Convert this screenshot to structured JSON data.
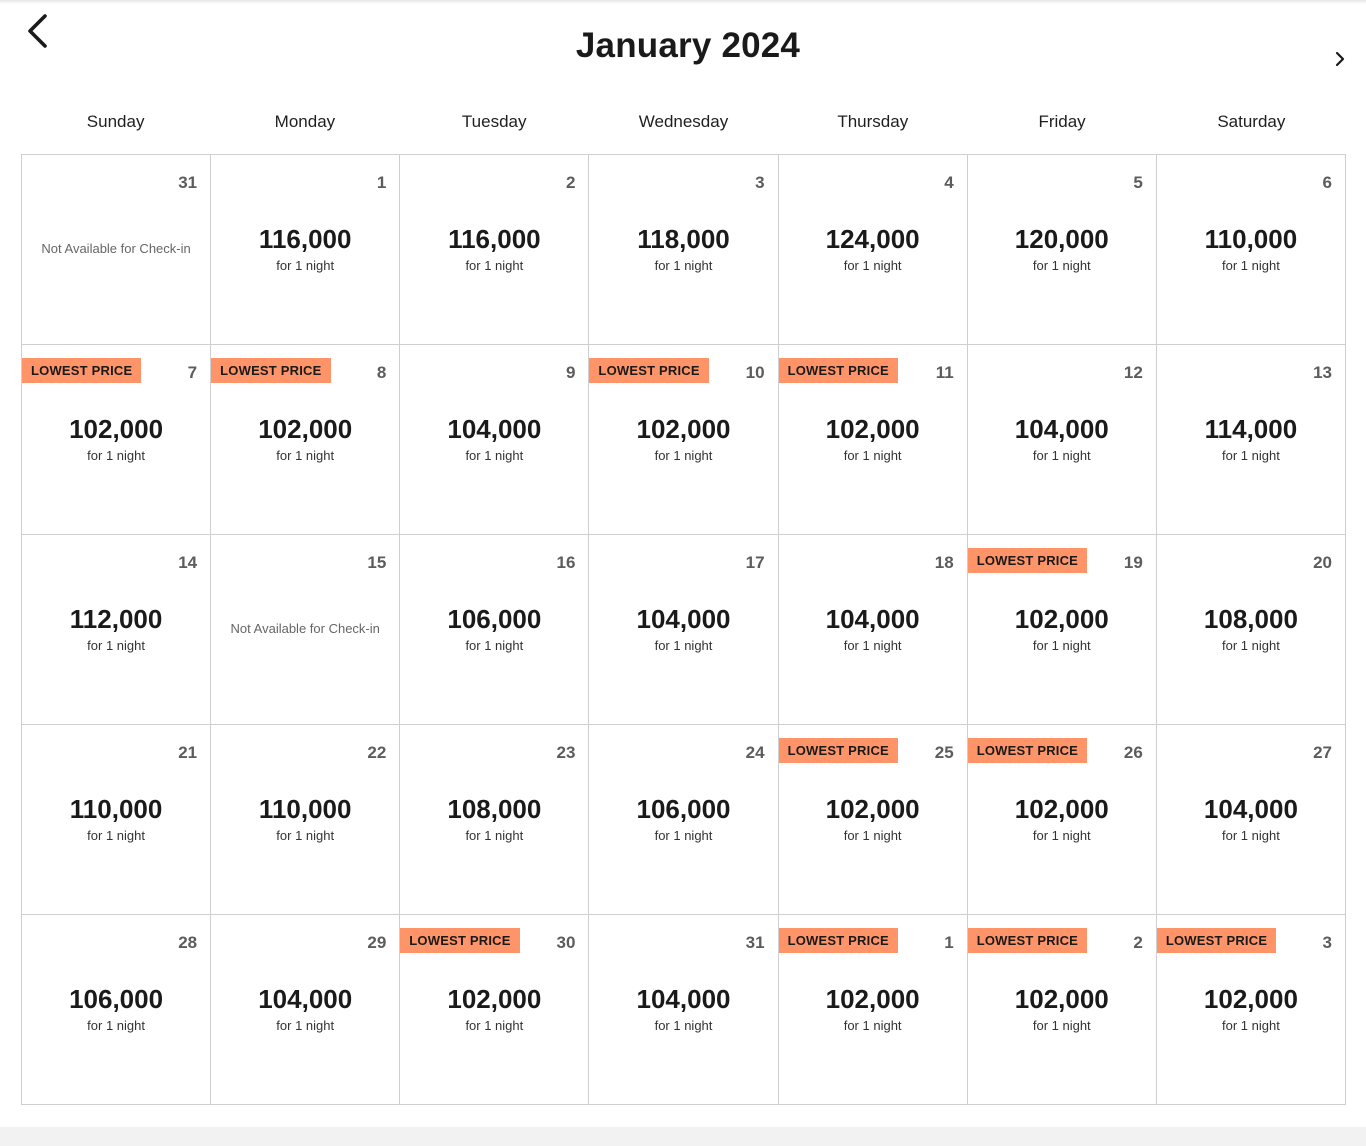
{
  "header": {
    "title": "January 2024",
    "prev_icon": "chevron-left-icon",
    "next_icon": "chevron-right-icon"
  },
  "weekdays": [
    "Sunday",
    "Monday",
    "Tuesday",
    "Wednesday",
    "Thursday",
    "Friday",
    "Saturday"
  ],
  "badge_color": "#ff9468",
  "days": [
    {
      "day": "31",
      "unavailable": "Not Available for Check-in"
    },
    {
      "day": "1",
      "price": "116,000",
      "nights": "for 1 night"
    },
    {
      "day": "2",
      "price": "116,000",
      "nights": "for 1 night"
    },
    {
      "day": "3",
      "price": "118,000",
      "nights": "for 1 night"
    },
    {
      "day": "4",
      "price": "124,000",
      "nights": "for 1 night"
    },
    {
      "day": "5",
      "price": "120,000",
      "nights": "for 1 night"
    },
    {
      "day": "6",
      "price": "110,000",
      "nights": "for 1 night"
    },
    {
      "day": "7",
      "price": "102,000",
      "nights": "for 1 night",
      "badge": "LOWEST PRICE"
    },
    {
      "day": "8",
      "price": "102,000",
      "nights": "for 1 night",
      "badge": "LOWEST PRICE"
    },
    {
      "day": "9",
      "price": "104,000",
      "nights": "for 1 night"
    },
    {
      "day": "10",
      "price": "102,000",
      "nights": "for 1 night",
      "badge": "LOWEST PRICE"
    },
    {
      "day": "11",
      "price": "102,000",
      "nights": "for 1 night",
      "badge": "LOWEST PRICE"
    },
    {
      "day": "12",
      "price": "104,000",
      "nights": "for 1 night"
    },
    {
      "day": "13",
      "price": "114,000",
      "nights": "for 1 night"
    },
    {
      "day": "14",
      "price": "112,000",
      "nights": "for 1 night"
    },
    {
      "day": "15",
      "unavailable": "Not Available for Check-in"
    },
    {
      "day": "16",
      "price": "106,000",
      "nights": "for 1 night"
    },
    {
      "day": "17",
      "price": "104,000",
      "nights": "for 1 night"
    },
    {
      "day": "18",
      "price": "104,000",
      "nights": "for 1 night"
    },
    {
      "day": "19",
      "price": "102,000",
      "nights": "for 1 night",
      "badge": "LOWEST PRICE"
    },
    {
      "day": "20",
      "price": "108,000",
      "nights": "for 1 night"
    },
    {
      "day": "21",
      "price": "110,000",
      "nights": "for 1 night"
    },
    {
      "day": "22",
      "price": "110,000",
      "nights": "for 1 night"
    },
    {
      "day": "23",
      "price": "108,000",
      "nights": "for 1 night"
    },
    {
      "day": "24",
      "price": "106,000",
      "nights": "for 1 night"
    },
    {
      "day": "25",
      "price": "102,000",
      "nights": "for 1 night",
      "badge": "LOWEST PRICE"
    },
    {
      "day": "26",
      "price": "102,000",
      "nights": "for 1 night",
      "badge": "LOWEST PRICE"
    },
    {
      "day": "27",
      "price": "104,000",
      "nights": "for 1 night"
    },
    {
      "day": "28",
      "price": "106,000",
      "nights": "for 1 night"
    },
    {
      "day": "29",
      "price": "104,000",
      "nights": "for 1 night"
    },
    {
      "day": "30",
      "price": "102,000",
      "nights": "for 1 night",
      "badge": "LOWEST PRICE"
    },
    {
      "day": "31",
      "price": "104,000",
      "nights": "for 1 night"
    },
    {
      "day": "1",
      "price": "102,000",
      "nights": "for 1 night",
      "badge": "LOWEST PRICE"
    },
    {
      "day": "2",
      "price": "102,000",
      "nights": "for 1 night",
      "badge": "LOWEST PRICE"
    },
    {
      "day": "3",
      "price": "102,000",
      "nights": "for 1 night",
      "badge": "LOWEST PRICE"
    }
  ]
}
